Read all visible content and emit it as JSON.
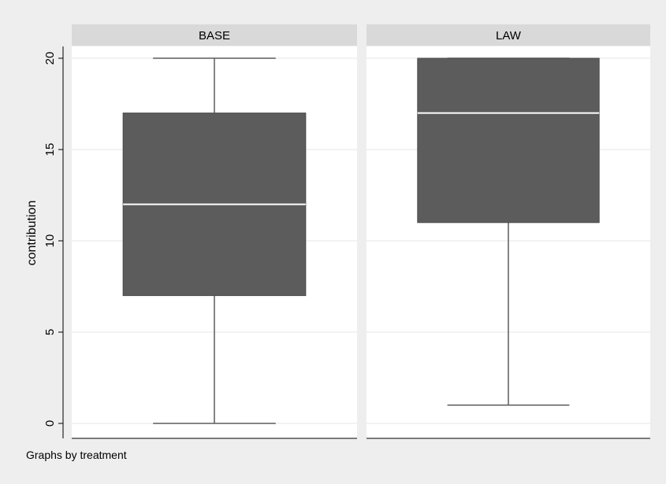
{
  "chart_data": {
    "type": "box",
    "ylabel": "contribution",
    "ylim": [
      0,
      20
    ],
    "yticks": [
      0,
      5,
      10,
      15,
      20
    ],
    "grid": true,
    "panels": [
      {
        "title": "BASE",
        "min": 0,
        "q1": 7,
        "median": 12,
        "q3": 17,
        "max": 20
      },
      {
        "title": "LAW",
        "min": 1,
        "q1": 11,
        "median": 17,
        "q3": 20,
        "max": 20
      }
    ],
    "note": "Graphs by treatment"
  },
  "colors": {
    "background": "#eeeeee",
    "plot_area": "#ffffff",
    "panel_header": "#d9d9d9",
    "box_fill": "#5c5c5c",
    "median_line": "#ffffff",
    "whisker": "#5c5c5c",
    "gridline": "#e6e6e6"
  }
}
